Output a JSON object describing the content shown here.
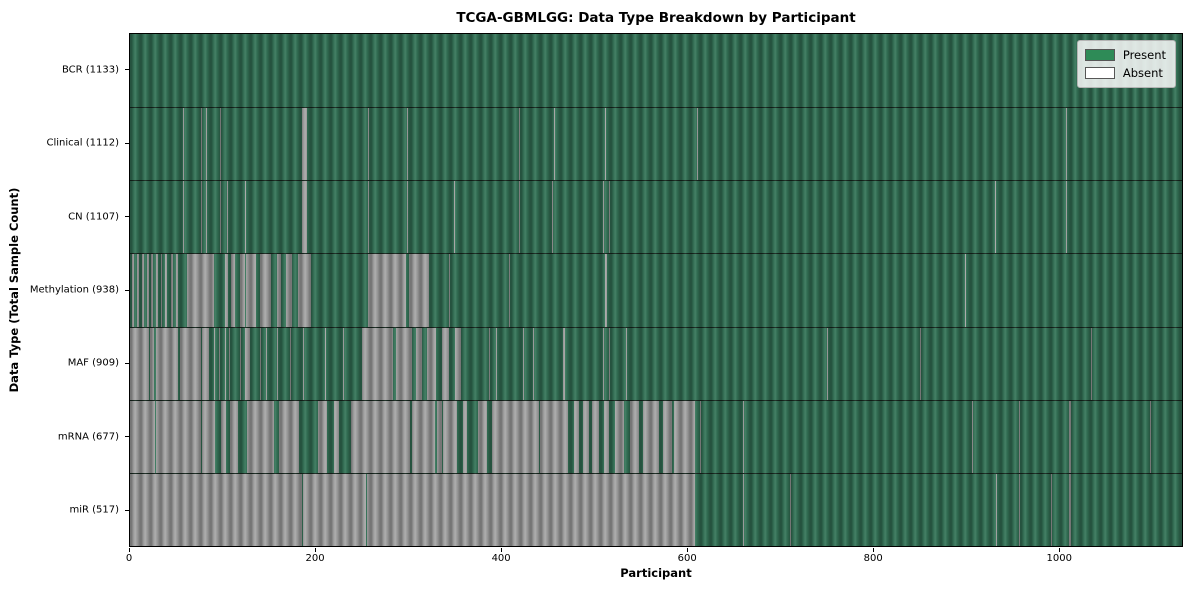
{
  "chart_data": {
    "type": "heatmap",
    "title": "TCGA-GBMLGG: Data Type Breakdown by Participant",
    "xlabel": "Participant",
    "ylabel": "Data Type (Total Sample Count)",
    "n_participants": 1133,
    "x_range": [
      0,
      1133
    ],
    "xticks": [
      0,
      200,
      400,
      600,
      800,
      1000
    ],
    "grid": false,
    "legend_position": "upper right",
    "present_color": "#2e8b57",
    "absent_color": "#ffffff",
    "absent_bar_render_color": "#a8a8a8",
    "legend": [
      {
        "label": "Present",
        "color": "#2e8b57"
      },
      {
        "label": "Absent",
        "color": "#ffffff"
      }
    ],
    "rows": [
      {
        "name": "BCR",
        "label": "BCR (1133)",
        "present_count": 1133,
        "absent_segments": []
      },
      {
        "name": "Clinical",
        "label": "Clinical (1112)",
        "present_count": 1112,
        "absent_segments": [
          [
            57,
            58
          ],
          [
            77,
            78
          ],
          [
            82,
            83
          ],
          [
            97,
            98
          ],
          [
            185,
            191
          ],
          [
            256,
            257
          ],
          [
            298,
            299
          ],
          [
            419,
            420
          ],
          [
            457,
            458
          ],
          [
            512,
            513
          ],
          [
            611,
            612
          ],
          [
            1008,
            1009
          ]
        ]
      },
      {
        "name": "CN",
        "label": "CN (1107)",
        "present_count": 1107,
        "absent_segments": [
          [
            57,
            58
          ],
          [
            77,
            78
          ],
          [
            82,
            83
          ],
          [
            97,
            98
          ],
          [
            104,
            105
          ],
          [
            124,
            125
          ],
          [
            185,
            191
          ],
          [
            256,
            257
          ],
          [
            298,
            299
          ],
          [
            349,
            350
          ],
          [
            419,
            420
          ],
          [
            455,
            456
          ],
          [
            509,
            510
          ],
          [
            516,
            517
          ],
          [
            932,
            933
          ],
          [
            1008,
            1009
          ]
        ]
      },
      {
        "name": "Methylation",
        "label": "Methylation (938)",
        "present_count": 938,
        "absent_segments": [
          [
            2,
            4
          ],
          [
            8,
            10
          ],
          [
            13,
            15
          ],
          [
            18,
            20
          ],
          [
            23,
            25
          ],
          [
            28,
            30
          ],
          [
            33,
            35
          ],
          [
            38,
            40
          ],
          [
            44,
            46
          ],
          [
            50,
            52
          ],
          [
            61,
            90
          ],
          [
            102,
            106
          ],
          [
            109,
            113
          ],
          [
            118,
            124
          ],
          [
            125,
            136
          ],
          [
            140,
            152
          ],
          [
            158,
            163
          ],
          [
            168,
            175
          ],
          [
            181,
            195
          ],
          [
            256,
            297
          ],
          [
            301,
            322
          ],
          [
            344,
            345
          ],
          [
            408,
            409
          ],
          [
            512,
            514
          ],
          [
            899,
            900
          ]
        ]
      },
      {
        "name": "MAF",
        "label": "MAF (909)",
        "present_count": 909,
        "absent_segments": [
          [
            0,
            20
          ],
          [
            22,
            26
          ],
          [
            28,
            52
          ],
          [
            54,
            76
          ],
          [
            78,
            85
          ],
          [
            90,
            91
          ],
          [
            96,
            97
          ],
          [
            102,
            103
          ],
          [
            107,
            108
          ],
          [
            118,
            119
          ],
          [
            124,
            129
          ],
          [
            140,
            141
          ],
          [
            147,
            148
          ],
          [
            158,
            159
          ],
          [
            172,
            173
          ],
          [
            186,
            187
          ],
          [
            210,
            211
          ],
          [
            229,
            230
          ],
          [
            250,
            283
          ],
          [
            287,
            304
          ],
          [
            308,
            315
          ],
          [
            320,
            330
          ],
          [
            336,
            344
          ],
          [
            350,
            356
          ],
          [
            387,
            388
          ],
          [
            394,
            395
          ],
          [
            423,
            424
          ],
          [
            434,
            435
          ],
          [
            466,
            469
          ],
          [
            509,
            510
          ],
          [
            516,
            517
          ],
          [
            534,
            535
          ],
          [
            751,
            752
          ],
          [
            851,
            852
          ],
          [
            1035,
            1036
          ]
        ]
      },
      {
        "name": "mRNA",
        "label": "mRNA (677)",
        "present_count": 677,
        "absent_segments": [
          [
            0,
            27
          ],
          [
            28,
            77
          ],
          [
            78,
            92
          ],
          [
            98,
            103
          ],
          [
            108,
            116
          ],
          [
            126,
            155
          ],
          [
            160,
            182
          ],
          [
            202,
            212
          ],
          [
            220,
            225
          ],
          [
            238,
            302
          ],
          [
            304,
            329
          ],
          [
            331,
            336
          ],
          [
            337,
            352
          ],
          [
            359,
            363
          ],
          [
            375,
            384
          ],
          [
            390,
            440
          ],
          [
            442,
            472
          ],
          [
            478,
            484
          ],
          [
            488,
            494
          ],
          [
            498,
            505
          ],
          [
            510,
            516
          ],
          [
            522,
            532
          ],
          [
            538,
            548
          ],
          [
            552,
            570
          ],
          [
            574,
            584
          ],
          [
            586,
            608
          ],
          [
            614,
            615
          ],
          [
            660,
            661
          ],
          [
            907,
            908
          ],
          [
            957,
            958
          ],
          [
            1011,
            1013
          ],
          [
            1098,
            1099
          ]
        ]
      },
      {
        "name": "miR",
        "label": "miR (517)",
        "present_count": 517,
        "absent_segments": [
          [
            0,
            185
          ],
          [
            186,
            254
          ],
          [
            255,
            608
          ],
          [
            660,
            661
          ],
          [
            711,
            712
          ],
          [
            933,
            934
          ],
          [
            957,
            958
          ],
          [
            992,
            993
          ],
          [
            1011,
            1013
          ]
        ]
      }
    ]
  }
}
